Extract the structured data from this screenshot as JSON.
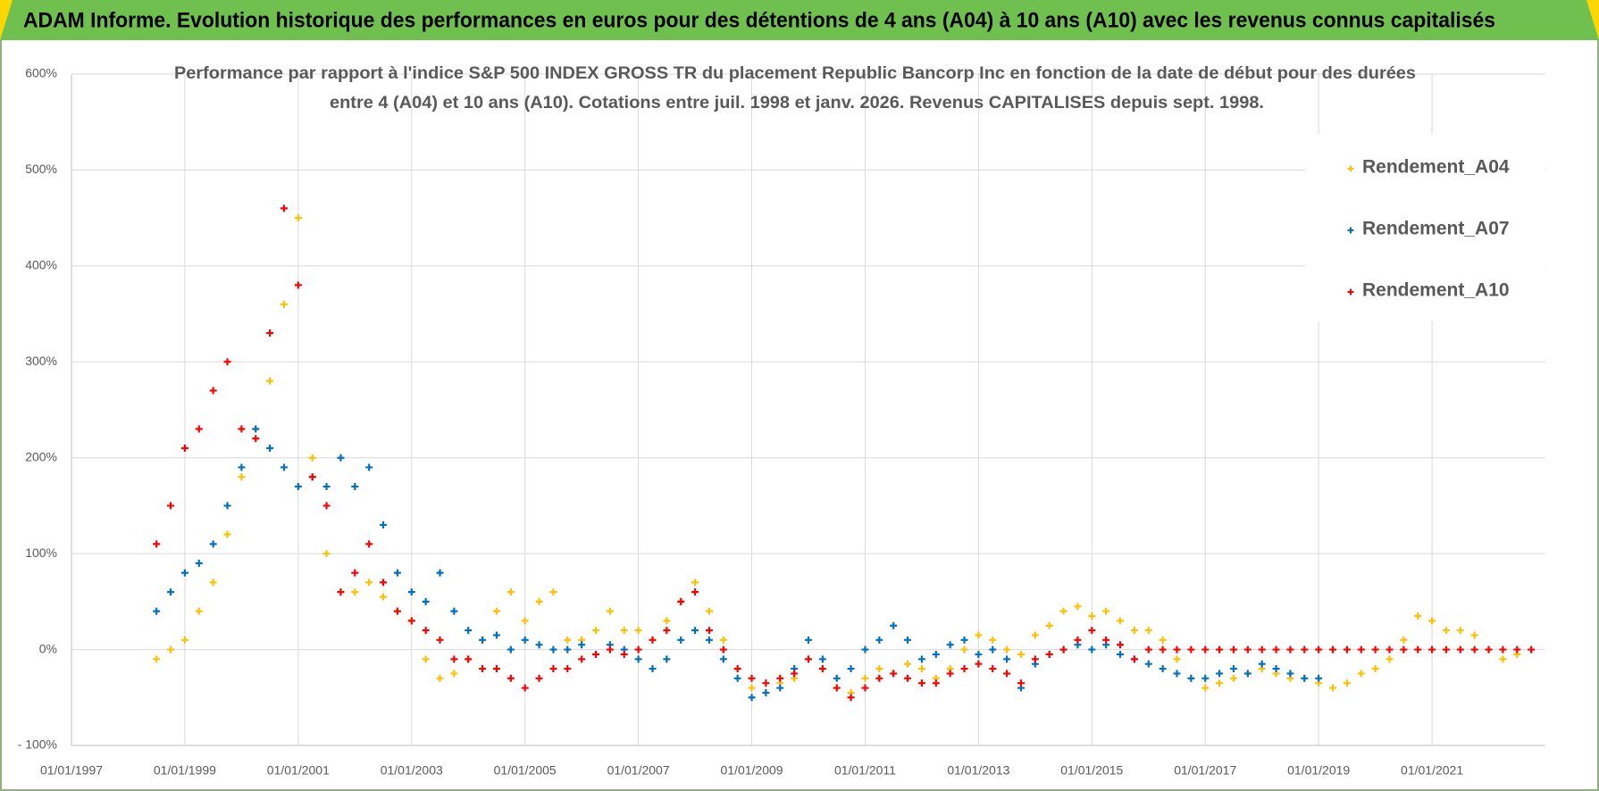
{
  "header": {
    "title": "ADAM Informe. Evolution historique des performances en euros pour des détentions de 4 ans (A04) à 10 ans (A10) avec les revenus connus capitalisés"
  },
  "chart_data": {
    "type": "scatter",
    "subtitle": [
      "Performance par rapport à l'indice S&P 500 INDEX GROSS TR  du placement Republic Bancorp Inc en fonction de la date de début pour des durées",
      "entre 4 (A04) et 10 ans (A10). Cotations entre juil. 1998 et janv. 2026. Revenus CAPITALISES depuis sept. 1998."
    ],
    "x": [
      "01/07/1998",
      "01/10/1998",
      "01/01/1999",
      "01/04/1999",
      "01/07/1999",
      "01/10/1999",
      "01/01/2000",
      "01/04/2000",
      "01/07/2000",
      "01/10/2000",
      "01/01/2001",
      "01/04/2001",
      "01/07/2001",
      "01/10/2001",
      "01/01/2002",
      "01/04/2002",
      "01/07/2002",
      "01/10/2002",
      "01/01/2003",
      "01/04/2003",
      "01/07/2003",
      "01/10/2003",
      "01/01/2004",
      "01/04/2004",
      "01/07/2004",
      "01/10/2004",
      "01/01/2005",
      "01/04/2005",
      "01/07/2005",
      "01/10/2005",
      "01/01/2006",
      "01/04/2006",
      "01/07/2006",
      "01/10/2006",
      "01/01/2007",
      "01/04/2007",
      "01/07/2007",
      "01/10/2007",
      "01/01/2008",
      "01/04/2008",
      "01/07/2008",
      "01/10/2008",
      "01/01/2009",
      "01/04/2009",
      "01/07/2009",
      "01/10/2009",
      "01/01/2010",
      "01/04/2010",
      "01/07/2010",
      "01/10/2010",
      "01/01/2011",
      "01/04/2011",
      "01/07/2011",
      "01/10/2011",
      "01/01/2012",
      "01/04/2012",
      "01/07/2012",
      "01/10/2012",
      "01/01/2013",
      "01/04/2013",
      "01/07/2013",
      "01/10/2013",
      "01/01/2014",
      "01/04/2014",
      "01/07/2014",
      "01/10/2014",
      "01/01/2015",
      "01/04/2015",
      "01/07/2015",
      "01/10/2015",
      "01/01/2016",
      "01/04/2016",
      "01/07/2016",
      "01/10/2016",
      "01/01/2017",
      "01/04/2017",
      "01/07/2017",
      "01/10/2017",
      "01/01/2018",
      "01/04/2018",
      "01/07/2018",
      "01/10/2018",
      "01/01/2019",
      "01/04/2019",
      "01/07/2019",
      "01/10/2019",
      "01/01/2020",
      "01/04/2020",
      "01/07/2020",
      "01/10/2020",
      "01/01/2021",
      "01/04/2021",
      "01/07/2021",
      "01/10/2021",
      "01/01/2022",
      "01/04/2022",
      "01/07/2022",
      "01/10/2022"
    ],
    "series": [
      {
        "name": "Rendement_A04",
        "color": "#ffc000",
        "values": [
          -10,
          0,
          10,
          40,
          70,
          120,
          180,
          230,
          280,
          360,
          450,
          200,
          100,
          60,
          60,
          70,
          55,
          40,
          30,
          -10,
          -30,
          -25,
          -10,
          10,
          40,
          60,
          30,
          50,
          60,
          10,
          10,
          20,
          40,
          20,
          20,
          10,
          30,
          50,
          70,
          40,
          10,
          -20,
          -40,
          -45,
          -35,
          -30,
          -10,
          -20,
          -40,
          -45,
          -30,
          -20,
          -25,
          -15,
          -20,
          -30,
          -20,
          0,
          15,
          10,
          0,
          -5,
          15,
          25,
          40,
          45,
          35,
          40,
          30,
          20,
          20,
          10,
          -10,
          -30,
          -40,
          -35,
          -30,
          -25,
          -20,
          -25,
          -30,
          -30,
          -35,
          -40,
          -35,
          -25,
          -20,
          -10,
          10,
          35,
          30,
          20,
          20,
          15,
          0,
          -10,
          -5,
          null
        ]
      },
      {
        "name": "Rendement_A07",
        "color": "#0070c0",
        "values": [
          40,
          60,
          80,
          90,
          110,
          150,
          190,
          230,
          210,
          190,
          170,
          180,
          170,
          200,
          170,
          190,
          130,
          80,
          60,
          50,
          80,
          40,
          20,
          10,
          15,
          0,
          10,
          5,
          0,
          0,
          5,
          -5,
          5,
          0,
          -10,
          -20,
          -10,
          10,
          20,
          10,
          -10,
          -30,
          -50,
          -45,
          -40,
          -20,
          10,
          -10,
          -30,
          -20,
          0,
          10,
          25,
          10,
          -10,
          -5,
          5,
          10,
          -5,
          0,
          -10,
          -40,
          -15,
          -5,
          0,
          5,
          0,
          5,
          -5,
          -10,
          -15,
          -20,
          -25,
          -30,
          -30,
          -25,
          -20,
          -25,
          -15,
          -20,
          -25,
          -30,
          -30,
          null,
          null,
          null,
          null,
          null,
          null,
          null,
          null,
          null,
          null,
          null,
          null,
          null,
          null,
          null
        ]
      },
      {
        "name": "Rendement_A10",
        "color": "#ff0000",
        "values": [
          110,
          150,
          210,
          230,
          270,
          300,
          230,
          220,
          330,
          460,
          380,
          180,
          150,
          60,
          80,
          110,
          70,
          40,
          30,
          20,
          10,
          -10,
          -10,
          -20,
          -20,
          -30,
          -40,
          -30,
          -20,
          -20,
          -10,
          -5,
          0,
          -5,
          0,
          10,
          20,
          50,
          60,
          20,
          0,
          -20,
          -30,
          -35,
          -30,
          -25,
          -10,
          -20,
          -40,
          -50,
          -40,
          -30,
          -25,
          -30,
          -35,
          -35,
          -25,
          -20,
          -15,
          -20,
          -25,
          -35,
          -10,
          -5,
          0,
          10,
          20,
          10,
          5,
          -10,
          0,
          0,
          0,
          0,
          0,
          0,
          0,
          0,
          0,
          0,
          0,
          0,
          0,
          0,
          0,
          0,
          0,
          0,
          0,
          0,
          0,
          0,
          0,
          0,
          0,
          0,
          0,
          0
        ]
      }
    ],
    "xlim": [
      "01/01/1997",
      "01/01/2023"
    ],
    "xticks": [
      "01/01/1997",
      "01/01/1999",
      "01/01/2001",
      "01/01/2003",
      "01/01/2005",
      "01/01/2007",
      "01/01/2009",
      "01/01/2011",
      "01/01/2013",
      "01/01/2015",
      "01/01/2017",
      "01/01/2019",
      "01/01/2021"
    ],
    "ylim": [
      -100,
      600
    ],
    "yticks": [
      {
        "value": -100,
        "label": "- 100%"
      },
      {
        "value": 0,
        "label": "0%"
      },
      {
        "value": 100,
        "label": "100%"
      },
      {
        "value": 200,
        "label": "200%"
      },
      {
        "value": 300,
        "label": "300%"
      },
      {
        "value": 400,
        "label": "400%"
      },
      {
        "value": 500,
        "label": "500%"
      },
      {
        "value": 600,
        "label": "600%"
      }
    ],
    "grid": true,
    "legend": "upper right"
  }
}
